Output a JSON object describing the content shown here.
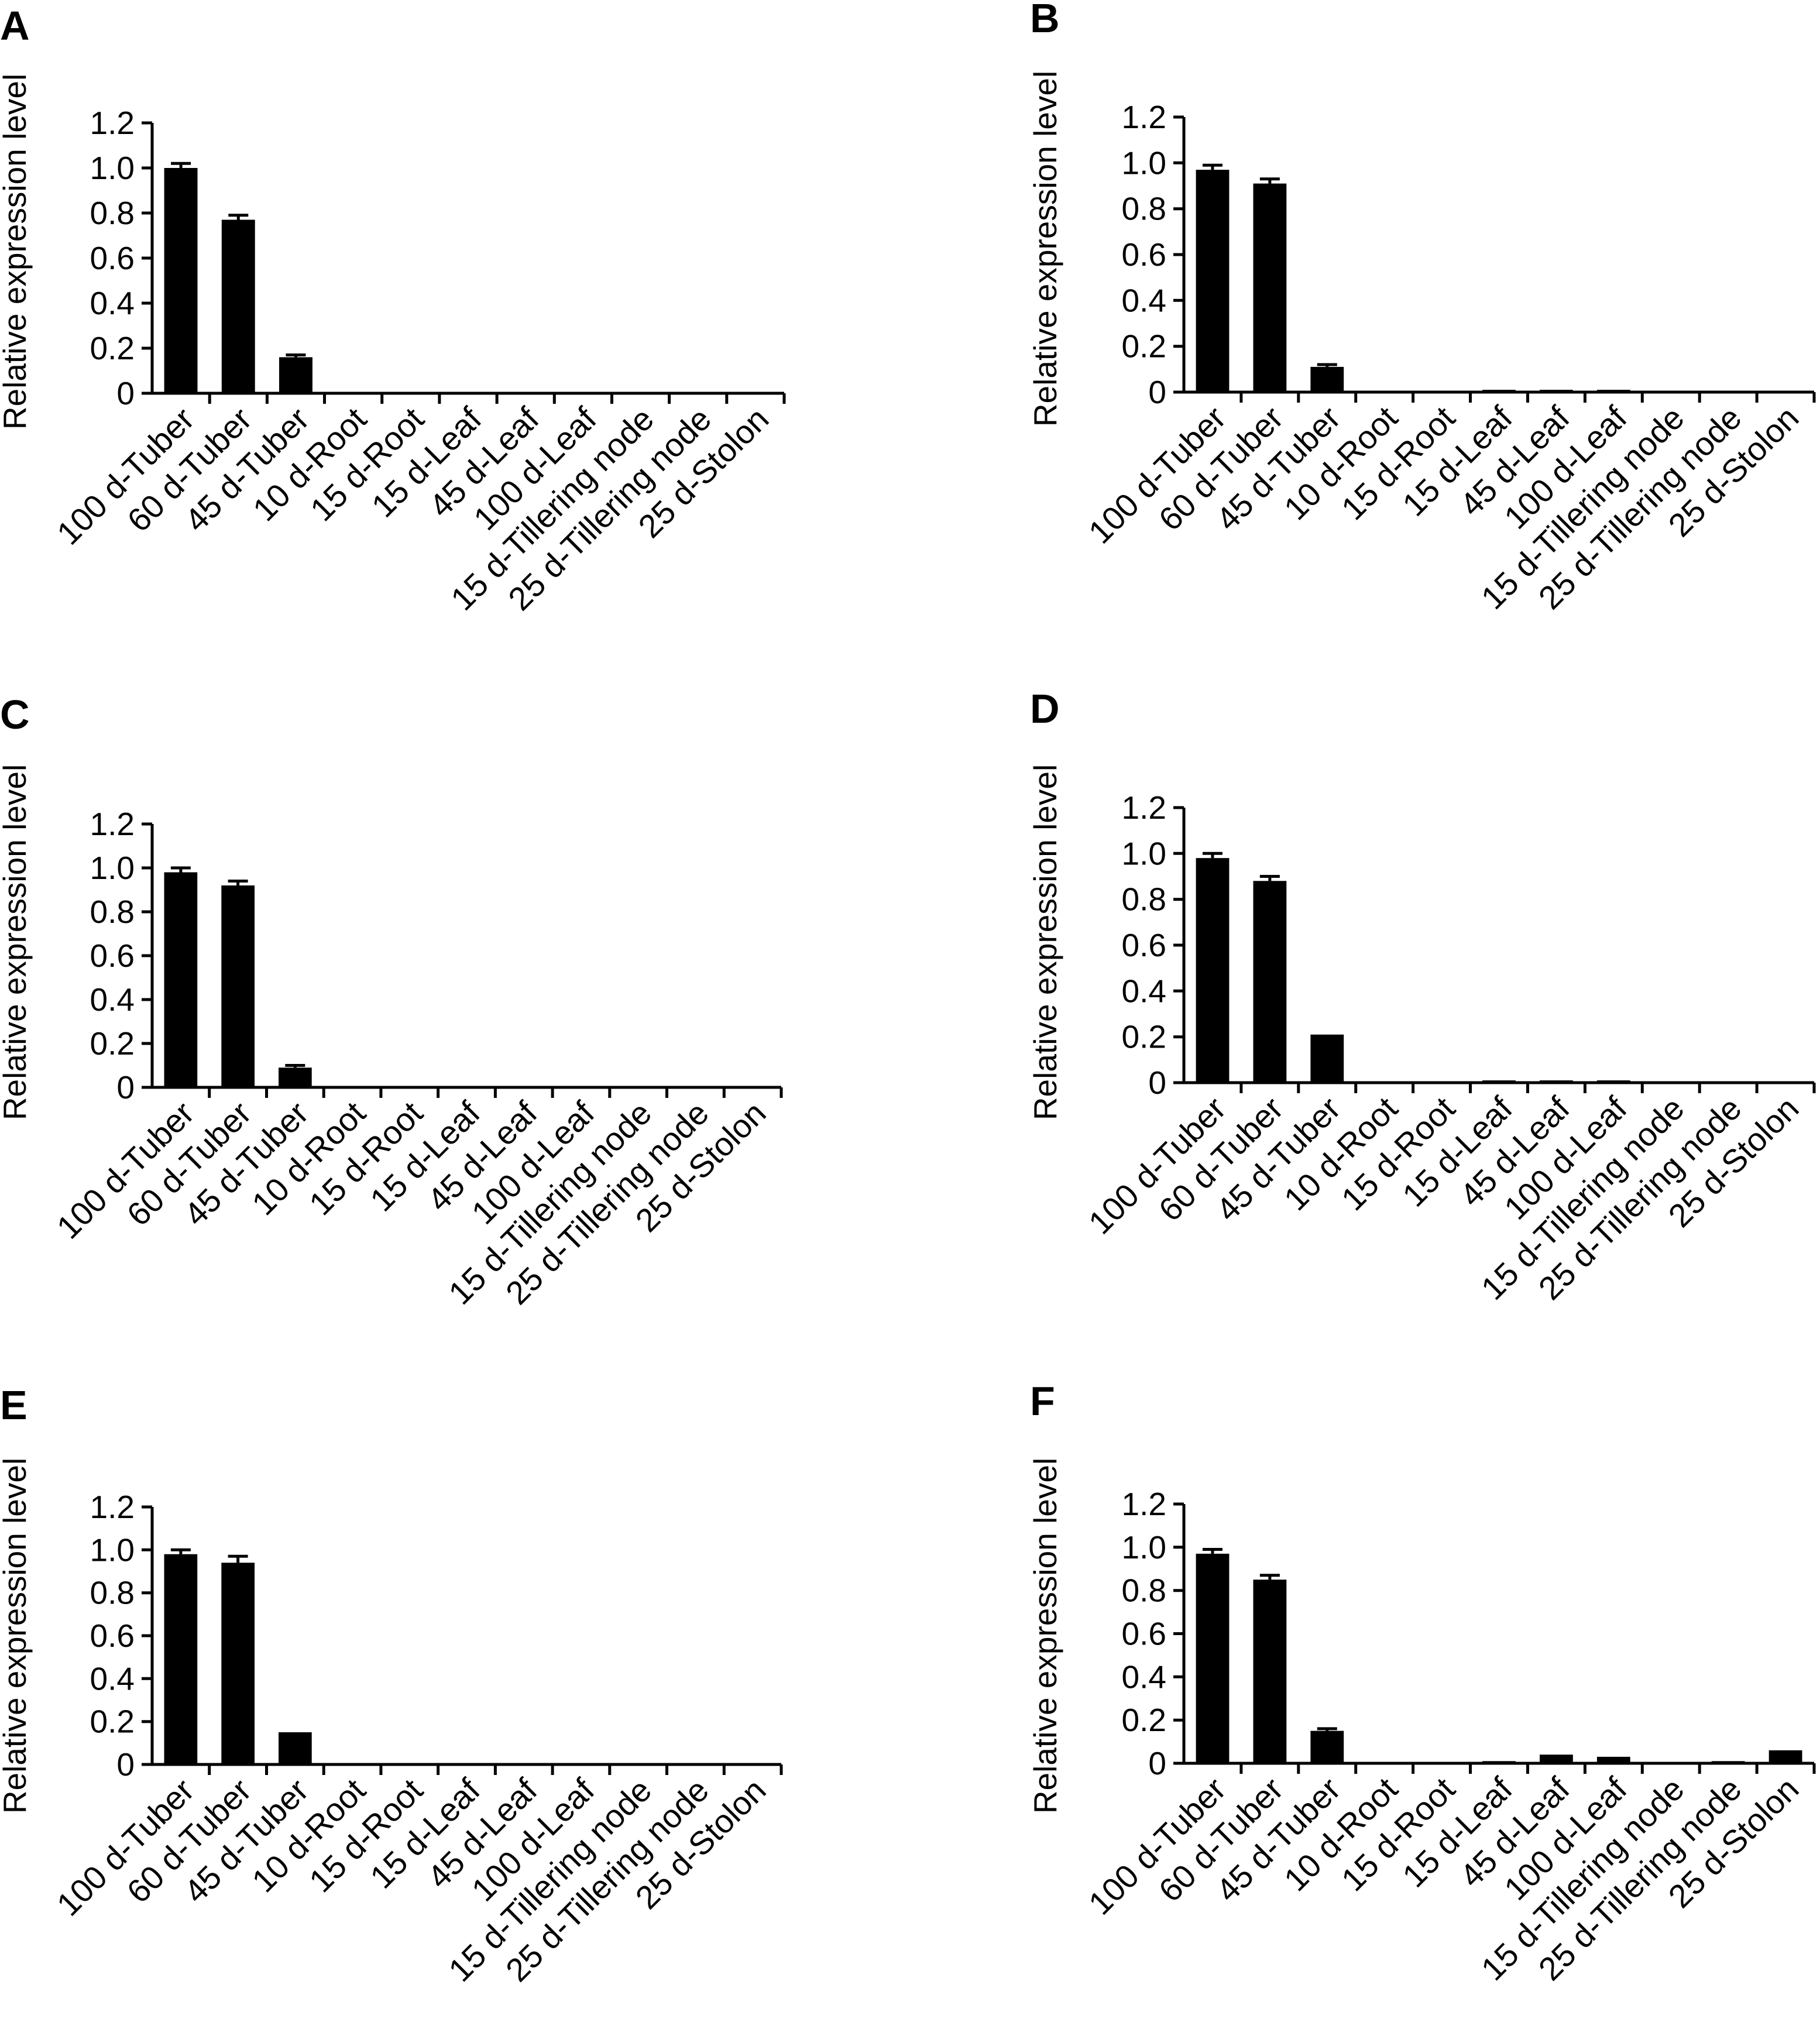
{
  "chart_data": [
    {
      "panel": "A",
      "type": "bar",
      "ylabel": "Relative expression level",
      "xlabel": "",
      "ylim": [
        0,
        1.2
      ],
      "yticks": [
        "0",
        "0.2",
        "0.4",
        "0.6",
        "0.8",
        "1.0",
        "1.2"
      ],
      "categories": [
        "100 d-Tuber",
        "60 d-Tuber",
        "45 d-Tuber",
        "10 d-Root",
        "15 d-Root",
        "15 d-Leaf",
        "45 d-Leaf",
        "100 d-Leaf",
        "15 d-Tillering node",
        "25 d-Tillering node",
        "25 d-Stolon"
      ],
      "values": [
        1.0,
        0.77,
        0.16,
        0,
        0,
        0,
        0,
        0,
        0,
        0,
        0
      ],
      "errors": [
        0.02,
        0.02,
        0.01,
        0,
        0,
        0,
        0,
        0,
        0,
        0,
        0
      ],
      "bar_color": "#000000"
    },
    {
      "panel": "B",
      "type": "bar",
      "ylabel": "Relative expression level",
      "xlabel": "",
      "ylim": [
        0,
        1.2
      ],
      "yticks": [
        "0",
        "0.2",
        "0.4",
        "0.6",
        "0.8",
        "1.0",
        "1.2"
      ],
      "categories": [
        "100 d-Tuber",
        "60 d-Tuber",
        "45 d-Tuber",
        "10 d-Root",
        "15 d-Root",
        "15 d-Leaf",
        "45 d-Leaf",
        "100 d-Leaf",
        "15 d-Tillering node",
        "25 d-Tillering node",
        "25 d-Stolon"
      ],
      "values": [
        0.97,
        0.91,
        0.11,
        0,
        0,
        0.01,
        0.01,
        0.01,
        0,
        0,
        0
      ],
      "errors": [
        0.02,
        0.02,
        0.01,
        0,
        0,
        0,
        0,
        0,
        0,
        0,
        0
      ],
      "bar_color": "#000000"
    },
    {
      "panel": "C",
      "type": "bar",
      "ylabel": "Relative expression level",
      "xlabel": "",
      "ylim": [
        0,
        1.2
      ],
      "yticks": [
        "0",
        "0.2",
        "0.4",
        "0.6",
        "0.8",
        "1.0",
        "1.2"
      ],
      "categories": [
        "100 d-Tuber",
        "60 d-Tuber",
        "45 d-Tuber",
        "10 d-Root",
        "15 d-Root",
        "15 d-Leaf",
        "45 d-Leaf",
        "100 d-Leaf",
        "15 d-Tillering node",
        "25 d-Tillering node",
        "25 d-Stolon"
      ],
      "values": [
        0.98,
        0.92,
        0.09,
        0,
        0,
        0,
        0,
        0,
        0,
        0,
        0
      ],
      "errors": [
        0.02,
        0.02,
        0.01,
        0,
        0,
        0,
        0,
        0,
        0,
        0,
        0
      ],
      "bar_color": "#000000"
    },
    {
      "panel": "D",
      "type": "bar",
      "ylabel": "Relative expression level",
      "xlabel": "",
      "ylim": [
        0,
        1.2
      ],
      "yticks": [
        "0",
        "0.2",
        "0.4",
        "0.6",
        "0.8",
        "1.0",
        "1.2"
      ],
      "categories": [
        "100 d-Tuber",
        "60 d-Tuber",
        "45 d-Tuber",
        "10 d-Root",
        "15 d-Root",
        "15 d-Leaf",
        "45 d-Leaf",
        "100 d-Leaf",
        "15 d-Tillering node",
        "25 d-Tillering node",
        "25 d-Stolon"
      ],
      "values": [
        0.98,
        0.88,
        0.21,
        0,
        0,
        0.01,
        0.01,
        0.01,
        0,
        0,
        0
      ],
      "errors": [
        0.02,
        0.02,
        0,
        0,
        0,
        0,
        0,
        0,
        0,
        0,
        0
      ],
      "bar_color": "#000000"
    },
    {
      "panel": "E",
      "type": "bar",
      "ylabel": "Relative expression level",
      "xlabel": "",
      "ylim": [
        0,
        1.2
      ],
      "yticks": [
        "0",
        "0.2",
        "0.4",
        "0.6",
        "0.8",
        "1.0",
        "1.2"
      ],
      "categories": [
        "100 d-Tuber",
        "60 d-Tuber",
        "45 d-Tuber",
        "10 d-Root",
        "15 d-Root",
        "15 d-Leaf",
        "45 d-Leaf",
        "100 d-Leaf",
        "15 d-Tillering node",
        "25 d-Tillering node",
        "25 d-Stolon"
      ],
      "values": [
        0.98,
        0.94,
        0.15,
        0,
        0,
        0,
        0,
        0,
        0,
        0,
        0
      ],
      "errors": [
        0.02,
        0.03,
        0,
        0,
        0,
        0,
        0,
        0,
        0,
        0,
        0
      ],
      "bar_color": "#000000"
    },
    {
      "panel": "F",
      "type": "bar",
      "ylabel": "Relative expression level",
      "xlabel": "",
      "ylim": [
        0,
        1.2
      ],
      "yticks": [
        "0",
        "0.2",
        "0.4",
        "0.6",
        "0.8",
        "1.0",
        "1.2"
      ],
      "categories": [
        "100 d-Tuber",
        "60 d-Tuber",
        "45 d-Tuber",
        "10 d-Root",
        "15 d-Root",
        "15 d-Leaf",
        "45 d-Leaf",
        "100 d-Leaf",
        "15 d-Tillering node",
        "25 d-Tillering node",
        "25 d-Stolon"
      ],
      "values": [
        0.97,
        0.85,
        0.15,
        0,
        0,
        0.01,
        0.04,
        0.03,
        0,
        0.01,
        0.06
      ],
      "errors": [
        0.02,
        0.02,
        0.01,
        0,
        0,
        0,
        0,
        0,
        0,
        0,
        0
      ],
      "bar_color": "#000000"
    }
  ]
}
